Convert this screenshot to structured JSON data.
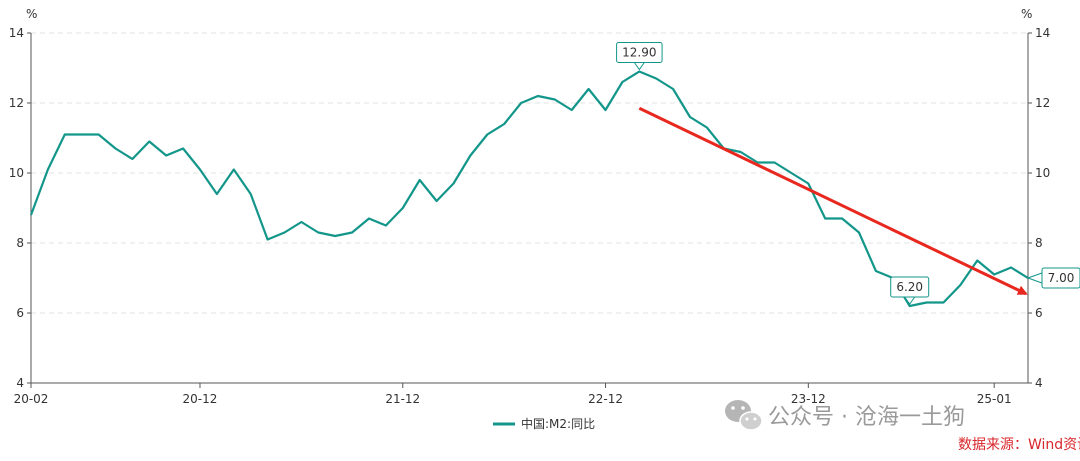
{
  "chart_data": {
    "type": "line",
    "unit_left": "%",
    "unit_right": "%",
    "ylim": [
      4,
      14
    ],
    "y_ticks": [
      4,
      6,
      8,
      10,
      12,
      14
    ],
    "x_tick_labels": [
      "20-02",
      "20-12",
      "21-12",
      "22-12",
      "23-12",
      "25-01"
    ],
    "x_tick_indices": [
      0,
      10,
      22,
      34,
      46,
      57
    ],
    "grid": "horizontal-dashed",
    "legend_position": "bottom-center",
    "series": [
      {
        "name": "中国:M2:同比",
        "color": "#13968a",
        "values": [
          8.8,
          10.1,
          11.1,
          11.1,
          11.1,
          10.7,
          10.4,
          10.9,
          10.5,
          10.7,
          10.1,
          9.4,
          10.1,
          9.4,
          8.1,
          8.3,
          8.6,
          8.3,
          8.2,
          8.3,
          8.7,
          8.5,
          9.0,
          9.8,
          9.2,
          9.7,
          10.5,
          11.1,
          11.4,
          12.0,
          12.2,
          12.1,
          11.8,
          12.4,
          11.8,
          12.6,
          12.9,
          12.7,
          12.4,
          11.6,
          11.3,
          10.7,
          10.6,
          10.3,
          10.3,
          10.0,
          9.7,
          8.7,
          8.7,
          8.3,
          7.2,
          7.0,
          6.2,
          6.3,
          6.3,
          6.8,
          7.5,
          7.1,
          7.3,
          7.0
        ]
      }
    ],
    "annotations": [
      {
        "label": "12.90",
        "index": 36,
        "value": 12.9
      },
      {
        "label": "6.20",
        "index": 52,
        "value": 6.2
      },
      {
        "label": "7.00",
        "index": 59,
        "value": 7.0
      }
    ],
    "trend_arrow": {
      "from_index": 36,
      "from_value": 11.85,
      "to_index": 59,
      "to_value": 6.55,
      "color": "#e8281e"
    }
  },
  "watermark": "公众号 · 沧海一土狗",
  "source_text": "数据来源：Wind资讯"
}
